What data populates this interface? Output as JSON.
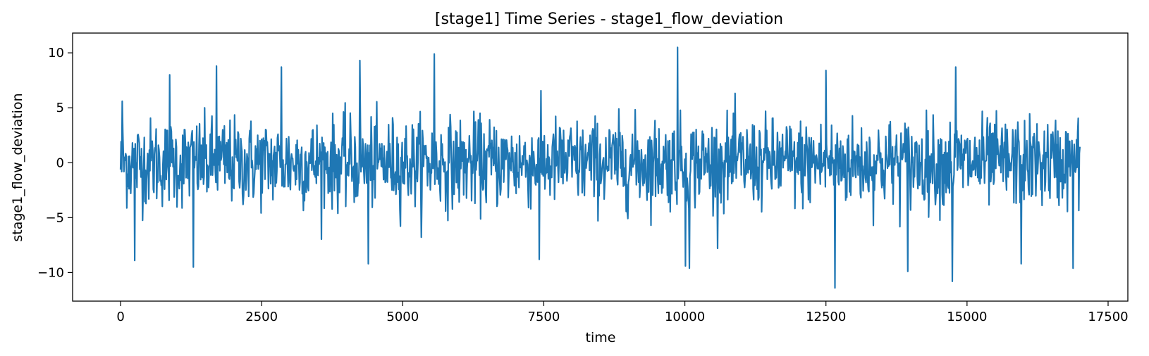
{
  "chart_data": {
    "type": "line",
    "title": "[stage1] Time Series - stage1_flow_deviation",
    "xlabel": "time",
    "ylabel": "stage1_flow_deviation",
    "xlim": [
      -850,
      17850
    ],
    "ylim": [
      -12.6,
      11.8
    ],
    "xticks": [
      0,
      2500,
      5000,
      7500,
      10000,
      12500,
      15000,
      17500
    ],
    "xtick_labels": [
      "0",
      "2500",
      "5000",
      "7500",
      "10000",
      "12500",
      "15000",
      "17500"
    ],
    "yticks": [
      10,
      5,
      0,
      -5,
      -10
    ],
    "ytick_labels": [
      "10",
      "5",
      "0",
      "−5",
      "−10"
    ],
    "grid": false,
    "legend": "none",
    "colors": {
      "series": "#1f77b4",
      "axes": "#000000",
      "background": "#ffffff"
    },
    "series": [
      {
        "x": [
          0,
          1000,
          2000,
          3000,
          4000,
          5000,
          6000,
          7000,
          8000,
          9000,
          10000,
          11000,
          12000,
          13000,
          14000,
          15000,
          16000,
          17000
        ],
        "x_step": 10,
        "x_end": 17000,
        "approx_std": 2.0,
        "peaks": [
          {
            "x": 30,
            "y": 5.6
          },
          {
            "x": 250,
            "y": -8.9
          },
          {
            "x": 870,
            "y": 8.0
          },
          {
            "x": 1290,
            "y": -9.5
          },
          {
            "x": 1700,
            "y": 8.8
          },
          {
            "x": 2850,
            "y": 8.7
          },
          {
            "x": 4240,
            "y": 9.3
          },
          {
            "x": 4390,
            "y": -9.2
          },
          {
            "x": 5560,
            "y": 9.9
          },
          {
            "x": 7420,
            "y": -8.8
          },
          {
            "x": 9870,
            "y": 10.5
          },
          {
            "x": 10010,
            "y": -9.4
          },
          {
            "x": 10080,
            "y": -9.6
          },
          {
            "x": 12500,
            "y": 8.4
          },
          {
            "x": 12660,
            "y": -11.4
          },
          {
            "x": 13950,
            "y": -9.9
          },
          {
            "x": 14740,
            "y": -10.8
          },
          {
            "x": 14800,
            "y": 8.7
          },
          {
            "x": 15960,
            "y": -9.2
          },
          {
            "x": 16880,
            "y": -9.6
          }
        ]
      }
    ]
  }
}
